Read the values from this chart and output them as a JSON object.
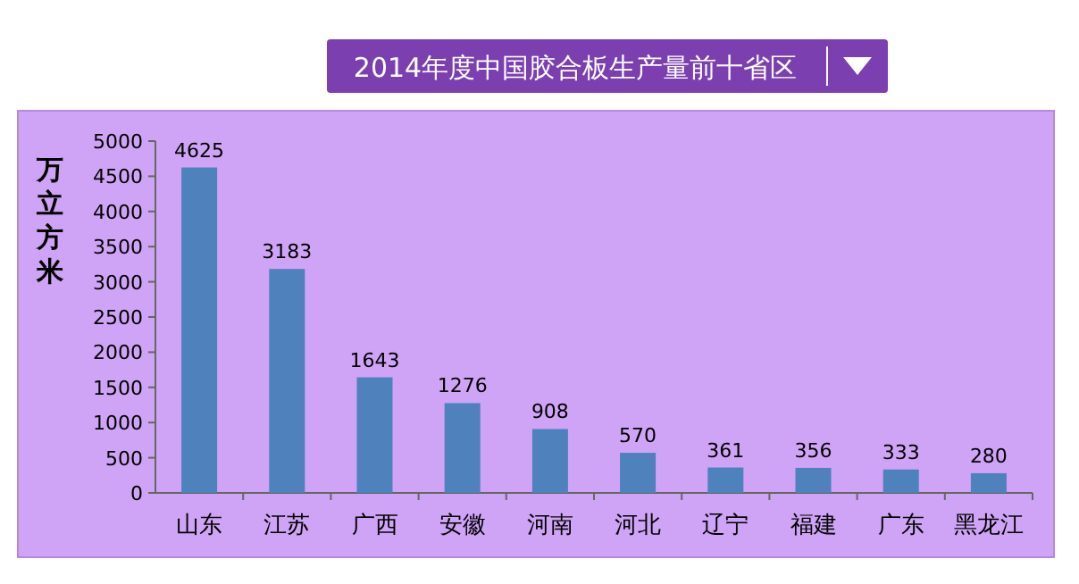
{
  "chart_data": {
    "type": "bar",
    "title": "2014年度中国胶合板生产量前十省区",
    "ylabel": "万立方米",
    "categories": [
      "山东",
      "江苏",
      "广西",
      "安徽",
      "河南",
      "河北",
      "辽宁",
      "福建",
      "广东",
      "黑龙江"
    ],
    "values": [
      4625,
      3183,
      1643,
      1276,
      908,
      570,
      361,
      356,
      333,
      280
    ],
    "color": "#4f81bd",
    "ylim": [
      0,
      5000
    ],
    "yticks": [
      0,
      500,
      1000,
      1500,
      2000,
      2500,
      3000,
      3500,
      4000,
      4500,
      5000
    ],
    "data_labels": true,
    "legend": false
  }
}
